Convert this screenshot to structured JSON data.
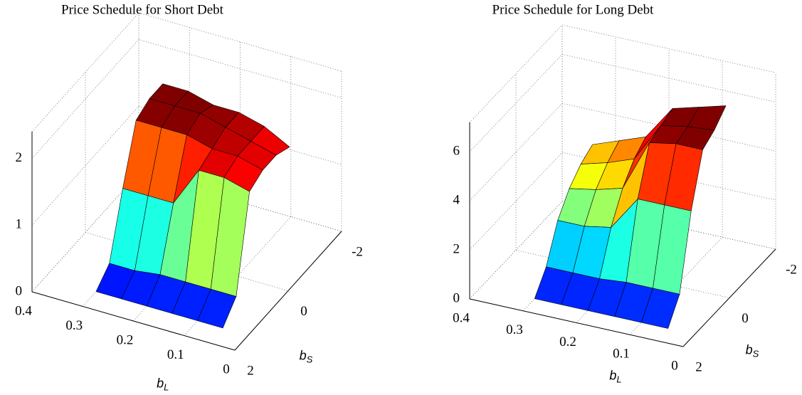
{
  "chart_data": [
    {
      "type": "surface",
      "title": "Price Schedule for Short Debt",
      "xlabel": {
        "base": "b",
        "sub": "S"
      },
      "ylabel": {
        "base": "b",
        "sub": "L"
      },
      "x": [
        1.5,
        1,
        0.5,
        0,
        -0.5,
        -1
      ],
      "y": [
        0.3,
        0.25,
        0.2,
        0.15,
        0.1,
        0.05
      ],
      "z": [
        [
          0,
          0.2,
          1.1,
          1.9,
          2.0,
          2.0
        ],
        [
          0,
          0.2,
          1.1,
          1.9,
          2.0,
          2.0
        ],
        [
          0,
          0.25,
          1.1,
          1.9,
          2.0,
          1.9
        ],
        [
          0,
          0.25,
          1.7,
          1.8,
          1.9,
          1.9
        ],
        [
          0,
          0.25,
          1.7,
          1.8,
          1.8,
          1.8
        ],
        [
          0,
          0.25,
          1.6,
          1.7,
          1.7,
          1.6
        ]
      ],
      "xlim": [
        2,
        -2
      ],
      "xticks": [
        2,
        0,
        -2
      ],
      "ylim": [
        0.4,
        0
      ],
      "yticks": [
        0.4,
        0.3,
        0.2,
        0.1,
        0
      ],
      "zlim": [
        0,
        2.4
      ],
      "zticks": [
        0,
        1,
        2
      ],
      "colormap": "jet",
      "grid": true
    },
    {
      "type": "surface",
      "title": "Price Schedule for Long Debt",
      "xlabel": {
        "base": "b",
        "sub": "S"
      },
      "ylabel": {
        "base": "b",
        "sub": "L"
      },
      "x": [
        1.5,
        1,
        0.5,
        0,
        -0.5,
        -1
      ],
      "y": [
        0.3,
        0.25,
        0.2,
        0.15,
        0.1,
        0.05
      ],
      "z": [
        [
          0,
          0.8,
          2.2,
          3.0,
          3.5,
          3.8
        ],
        [
          0,
          0.8,
          2.2,
          3.2,
          3.8,
          4.2
        ],
        [
          0,
          0.8,
          2.4,
          3.5,
          4.2,
          4.6
        ],
        [
          0,
          0.9,
          3.8,
          5.6,
          5.8,
          6.0
        ],
        [
          0,
          0.9,
          3.8,
          5.8,
          6.0,
          6.3
        ],
        [
          0,
          0.9,
          3.8,
          5.8,
          6.1,
          6.6
        ]
      ],
      "xlim": [
        2,
        -2
      ],
      "xticks": [
        2,
        0,
        -2
      ],
      "ylim": [
        0.4,
        0
      ],
      "yticks": [
        0.4,
        0.3,
        0.2,
        0.1,
        0
      ],
      "zlim": [
        0,
        7.2
      ],
      "zticks": [
        0,
        2,
        4,
        6
      ],
      "colormap": "jet",
      "grid": true
    }
  ]
}
